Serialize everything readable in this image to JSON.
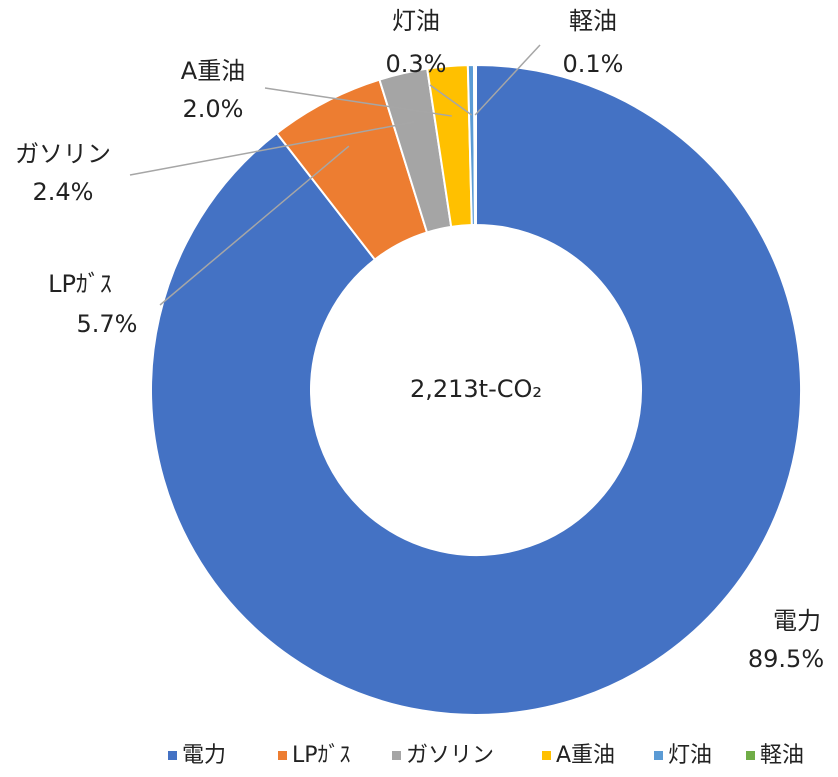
{
  "chart_data": {
    "type": "donut",
    "center_label": "2,213t-CO₂",
    "categories": [
      "電力",
      "LPｶﾞｽ",
      "ガソリン",
      "A重油",
      "灯油",
      "軽油"
    ],
    "values": [
      89.5,
      5.7,
      2.4,
      2.0,
      0.3,
      0.1
    ],
    "value_labels": [
      "89.5%",
      "5.7%",
      "2.4%",
      "2.0%",
      "0.3%",
      "0.1%"
    ],
    "colors": [
      "#4472c4",
      "#ed7d31",
      "#a5a5a5",
      "#ffc000",
      "#5b9bd5",
      "#70ad47"
    ],
    "legend": "bottom"
  }
}
